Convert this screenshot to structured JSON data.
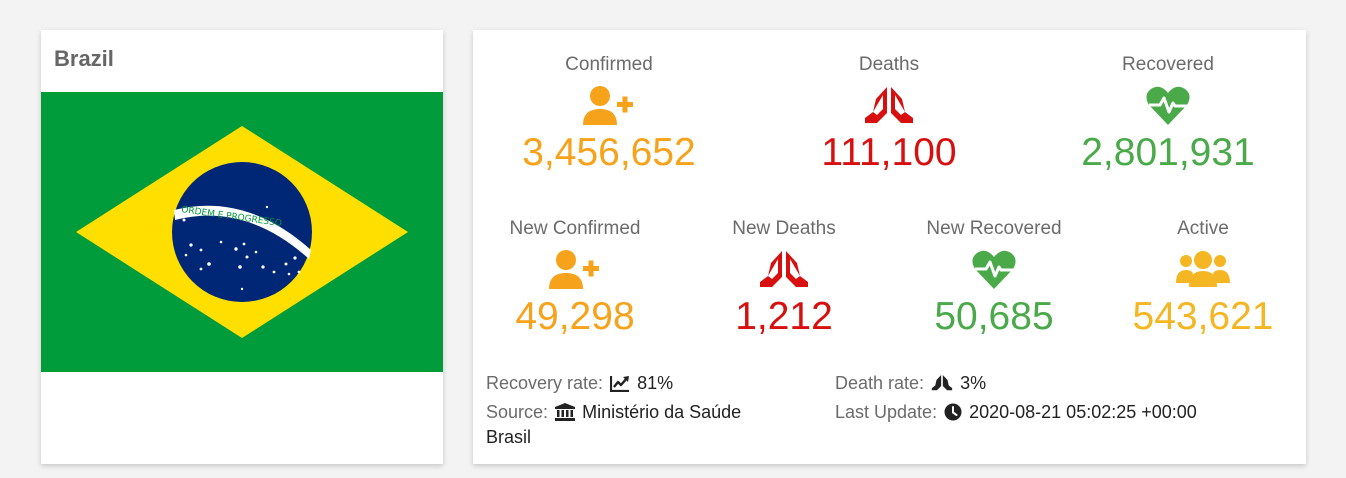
{
  "country": {
    "name": "Brazil",
    "flag_motto": "ORDEM E PROGRESSO"
  },
  "stats": {
    "confirmed": {
      "label": "Confirmed",
      "value": "3,456,652",
      "icon": "user-plus-icon"
    },
    "deaths": {
      "label": "Deaths",
      "value": "111,100",
      "icon": "praying-hands-icon"
    },
    "recovered": {
      "label": "Recovered",
      "value": "2,801,931",
      "icon": "heartbeat-icon"
    },
    "new_confirmed": {
      "label": "New Confirmed",
      "value": "49,298",
      "icon": "user-plus-icon"
    },
    "new_deaths": {
      "label": "New Deaths",
      "value": "1,212",
      "icon": "praying-hands-icon"
    },
    "new_recovered": {
      "label": "New Recovered",
      "value": "50,685",
      "icon": "heartbeat-icon"
    },
    "active": {
      "label": "Active",
      "value": "543,621",
      "icon": "users-icon"
    }
  },
  "info": {
    "recovery_rate_label": "Recovery rate:",
    "recovery_rate_value": "81%",
    "death_rate_label": "Death rate:",
    "death_rate_value": "3%",
    "source_label": "Source:",
    "source_value_line1": "Ministério da Saúde",
    "source_value_line2": "Brasil",
    "last_update_label": "Last Update:",
    "last_update_value": "2020-08-21 05:02:25 +00:00"
  },
  "colors": {
    "confirmed": "#f7a21b",
    "deaths": "#d80f0f",
    "recovered": "#4aaa4a",
    "active": "#f4b623"
  }
}
